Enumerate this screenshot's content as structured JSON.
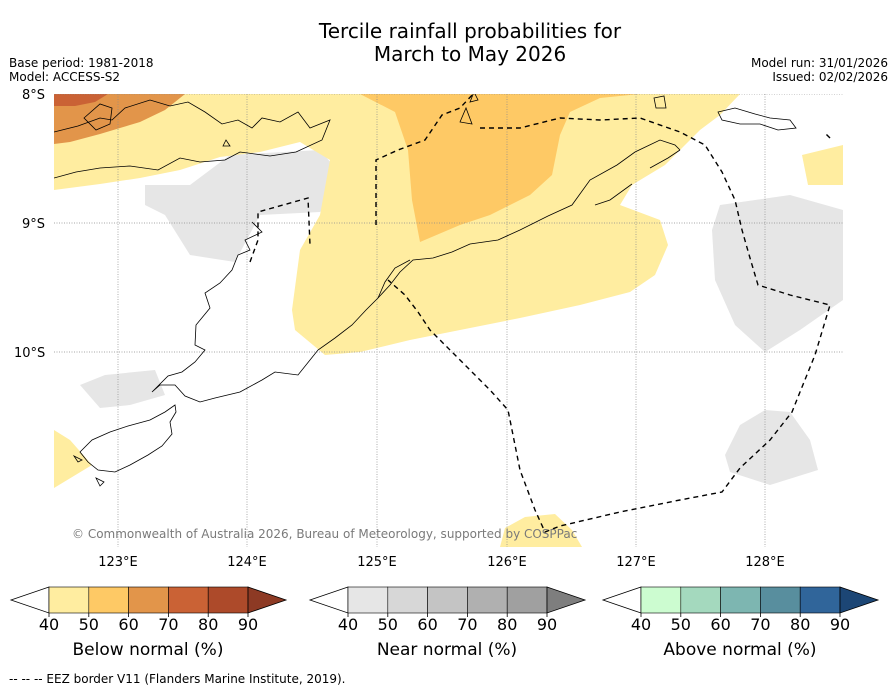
{
  "header": {
    "title_line1": "Tercile rainfall probabilities for",
    "title_line2": "March to May 2026",
    "base_period": "Base period: 1981-2018",
    "model": "Model: ACCESS-S2",
    "model_run": "Model run: 31/01/2026",
    "issued": "Issued: 02/02/2026"
  },
  "map": {
    "lat_labels": [
      "8°S",
      "9°S",
      "10°S"
    ],
    "lon_labels": [
      "123°E",
      "124°E",
      "125°E",
      "126°E",
      "127°E",
      "128°E"
    ],
    "copyright": "© Commonwealth of Australia 2026, Bureau of Meteorology, supported by COSPPac"
  },
  "colorbars": [
    {
      "name": "below",
      "label": "Below normal (%)",
      "ticks": [
        "40",
        "50",
        "60",
        "70",
        "80",
        "90"
      ],
      "colors": [
        "#ffffff",
        "#ffeda0",
        "#fec965",
        "#e2954a",
        "#ca6235",
        "#ad4a2a",
        "#8d3a24"
      ]
    },
    {
      "name": "near",
      "label": "Near normal (%)",
      "ticks": [
        "40",
        "50",
        "60",
        "70",
        "80",
        "90"
      ],
      "colors": [
        "#ffffff",
        "#e6e6e6",
        "#d7d7d7",
        "#c4c4c4",
        "#b0b0b0",
        "#a0a0a0",
        "#7e7e7e"
      ]
    },
    {
      "name": "above",
      "label": "Above normal (%)",
      "ticks": [
        "40",
        "50",
        "60",
        "70",
        "80",
        "90"
      ],
      "colors": [
        "#ffffff",
        "#ccfcd0",
        "#a4d9be",
        "#7db6b1",
        "#588e9e",
        "#30659a",
        "#1c4675"
      ]
    }
  ],
  "footnote": "--  --  -- EEZ border V11 (Flanders Marine Institute, 2019)."
}
